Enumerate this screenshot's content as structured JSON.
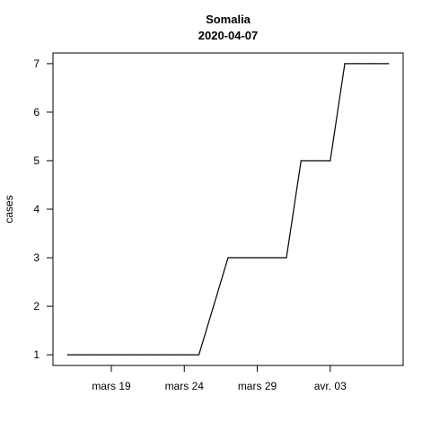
{
  "chart_data": {
    "type": "line",
    "title": "Somalia",
    "subtitle": "2020-04-07",
    "xlabel": "",
    "ylabel": "cases",
    "x": [
      "2020-03-16",
      "2020-03-17",
      "2020-03-18",
      "2020-03-19",
      "2020-03-20",
      "2020-03-21",
      "2020-03-22",
      "2020-03-23",
      "2020-03-24",
      "2020-03-25",
      "2020-03-26",
      "2020-03-27",
      "2020-03-28",
      "2020-03-29",
      "2020-03-30",
      "2020-03-31",
      "2020-04-01",
      "2020-04-02",
      "2020-04-03",
      "2020-04-04",
      "2020-04-05",
      "2020-04-06",
      "2020-04-07"
    ],
    "values": [
      1,
      1,
      1,
      1,
      1,
      1,
      1,
      1,
      1,
      1,
      2,
      3,
      3,
      3,
      3,
      3,
      5,
      5,
      5,
      7,
      7,
      7,
      7
    ],
    "xlim": [
      "2020-03-15",
      "2020-04-08"
    ],
    "ylim": [
      0.78,
      7.22
    ],
    "xticks": [
      {
        "date": "2020-03-19",
        "label": "mars 19"
      },
      {
        "date": "2020-03-24",
        "label": "mars 24"
      },
      {
        "date": "2020-03-29",
        "label": "mars 29"
      },
      {
        "date": "2020-04-03",
        "label": "avr. 03"
      }
    ],
    "yticks": [
      1,
      2,
      3,
      4,
      5,
      6,
      7
    ],
    "grid": false,
    "line_color": "#000000"
  }
}
